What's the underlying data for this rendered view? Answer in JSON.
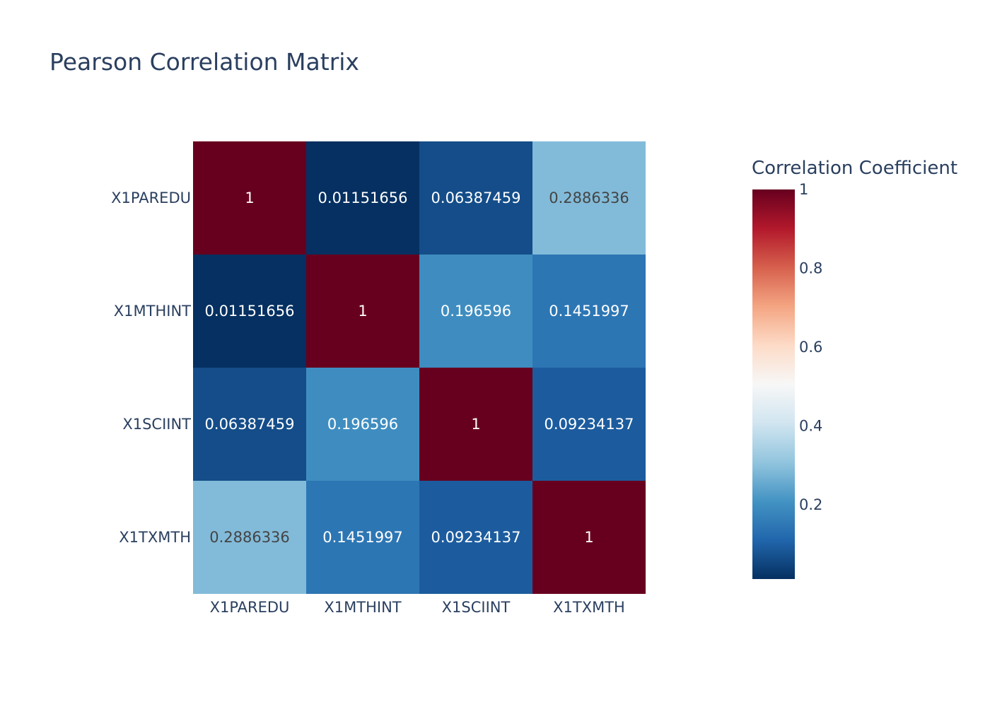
{
  "chart_data": {
    "type": "heatmap",
    "title": "Pearson Correlation Matrix",
    "x_categories": [
      "X1PAREDU",
      "X1MTHINT",
      "X1SCIINT",
      "X1TXMTH"
    ],
    "y_categories": [
      "X1PAREDU",
      "X1MTHINT",
      "X1SCIINT",
      "X1TXMTH"
    ],
    "z": [
      [
        1,
        0.01151656,
        0.06387459,
        0.2886336
      ],
      [
        0.01151656,
        1,
        0.196596,
        0.1451997
      ],
      [
        0.06387459,
        0.196596,
        1,
        0.09234137
      ],
      [
        0.2886336,
        0.1451997,
        0.09234137,
        1
      ]
    ],
    "z_labels": [
      [
        "1",
        "0.01151656",
        "0.06387459",
        "0.2886336"
      ],
      [
        "0.01151656",
        "1",
        "0.196596",
        "0.1451997"
      ],
      [
        "0.06387459",
        "0.196596",
        "1",
        "0.09234137"
      ],
      [
        "0.2886336",
        "0.1451997",
        "0.09234137",
        "1"
      ]
    ],
    "zmin": 0.01151656,
    "zmax": 1,
    "colorscale": "RdBu reversed",
    "colorscale_stops": [
      [
        0,
        "#053061"
      ],
      [
        0.1,
        "#2166ac"
      ],
      [
        0.2,
        "#4393c3"
      ],
      [
        0.3,
        "#92c5de"
      ],
      [
        0.4,
        "#d1e5f0"
      ],
      [
        0.5,
        "#f7f7f7"
      ],
      [
        0.6,
        "#fddbc7"
      ],
      [
        0.7,
        "#f4a582"
      ],
      [
        0.8,
        "#d6604d"
      ],
      [
        0.9,
        "#b2182b"
      ],
      [
        1,
        "#67001f"
      ]
    ],
    "colorbar": {
      "title": "Correlation Coefficient",
      "ticks": [
        {
          "value": 0.2,
          "label": "0.2"
        },
        {
          "value": 0.4,
          "label": "0.4"
        },
        {
          "value": 0.6,
          "label": "0.6"
        },
        {
          "value": 0.8,
          "label": "0.8"
        },
        {
          "value": 1,
          "label": "1"
        }
      ]
    },
    "text_color_dark": "#444444",
    "text_color_light": "#ffffff",
    "font_color": "#2a3f5f"
  }
}
